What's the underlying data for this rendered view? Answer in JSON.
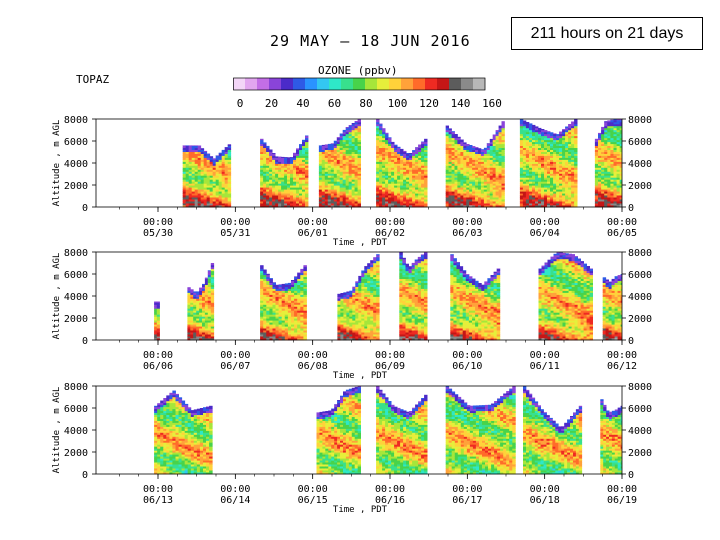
{
  "badge": "211 hours on 21 days",
  "chart_data": {
    "type": "heatmap",
    "title": "29 MAY — 18 JUN 2016",
    "site": "TOPAZ",
    "colorbar": {
      "label": "OZONE (ppbv)",
      "ticks": [
        "0",
        "20",
        "40",
        "60",
        "80",
        "100",
        "120",
        "140",
        "160"
      ],
      "range": [
        0,
        170
      ],
      "colors": [
        "#f3d6f7",
        "#e2a6ef",
        "#c36ee6",
        "#8a44d9",
        "#4b2bc9",
        "#2e5ae6",
        "#2a93ff",
        "#33c7f2",
        "#2ee8c8",
        "#38e08d",
        "#48d34a",
        "#a6e63a",
        "#e6ef3b",
        "#ffd23a",
        "#ffa23a",
        "#ff6b2a",
        "#ee2a22",
        "#c41616",
        "#5c5c5c",
        "#8a8a8a",
        "#b8b8b8"
      ]
    },
    "ylabel": "Altitude , m AGL",
    "xlabel": "Time , PDT",
    "ylim": [
      0,
      8000
    ],
    "yticks": [
      "8000",
      "6000",
      "4000",
      "2000",
      "0"
    ],
    "panels": [
      {
        "xticks": [
          "05/30",
          "05/31",
          "06/01",
          "06/02",
          "06/03",
          "06/04",
          "06/05"
        ],
        "blocks": [
          [
            0.32,
            0.94,
            5600,
            5600,
            4400,
            5700
          ],
          [
            1.32,
            1.94,
            6200,
            4600,
            4500,
            6500
          ],
          [
            2.08,
            2.62,
            5600,
            5800,
            7200,
            8000
          ],
          [
            2.82,
            3.48,
            8000,
            5800,
            4800,
            6200
          ],
          [
            3.72,
            4.48,
            7400,
            5800,
            5200,
            7800
          ],
          [
            4.68,
            5.42,
            8000,
            7200,
            6600,
            8000
          ],
          [
            5.65,
            6.05,
            6200,
            7800,
            8000,
            8000
          ]
        ]
      },
      {
        "xticks": [
          "06/06",
          "06/07",
          "06/08",
          "06/09",
          "06/10",
          "06/11",
          "06/12"
        ],
        "blocks": [
          [
            -0.05,
            0.02,
            3500,
            3500,
            3500,
            3500
          ],
          [
            0.38,
            0.72,
            4800,
            4300,
            5200,
            7000
          ],
          [
            1.32,
            1.92,
            6800,
            5000,
            5200,
            6800
          ],
          [
            2.32,
            2.86,
            4200,
            4500,
            6600,
            7800
          ],
          [
            3.12,
            3.48,
            8000,
            6600,
            7400,
            8000
          ],
          [
            3.78,
            4.42,
            7800,
            6000,
            5000,
            6500
          ],
          [
            4.92,
            5.62,
            6500,
            8000,
            7800,
            6500
          ],
          [
            5.75,
            6.02,
            5700,
            5300,
            5800,
            6000
          ]
        ]
      },
      {
        "xticks": [
          "06/13",
          "06/14",
          "06/15",
          "06/16",
          "06/17",
          "06/18",
          "06/19"
        ],
        "blocks": [
          [
            -0.05,
            0.7,
            6200,
            7600,
            5800,
            6200
          ],
          [
            2.05,
            2.62,
            5600,
            5800,
            7600,
            8000
          ],
          [
            2.82,
            3.48,
            8000,
            6200,
            5600,
            7200
          ],
          [
            3.72,
            4.62,
            8000,
            6200,
            6300,
            8000
          ],
          [
            4.72,
            5.48,
            8000,
            5800,
            4200,
            6200
          ],
          [
            5.72,
            6.02,
            6800,
            5600,
            5800,
            6200
          ]
        ]
      }
    ]
  }
}
